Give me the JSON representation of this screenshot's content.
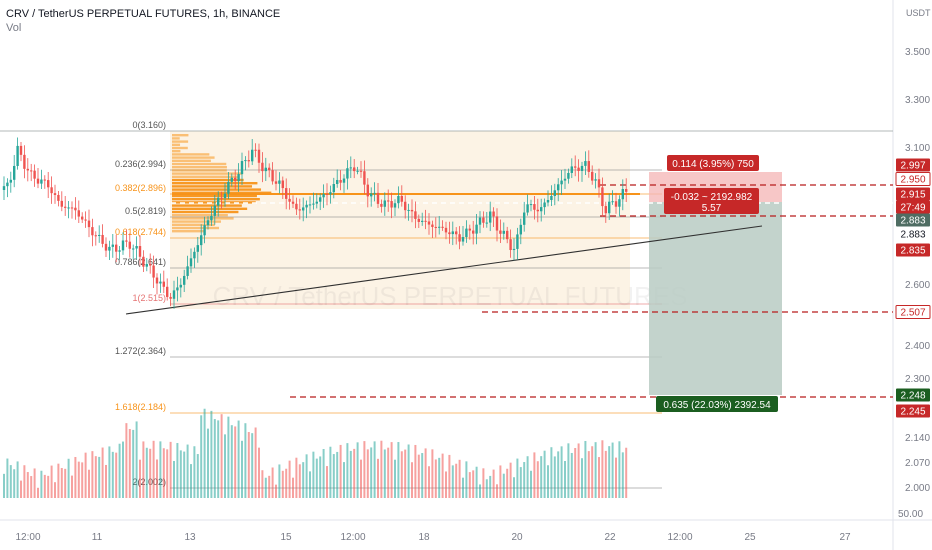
{
  "header": {
    "title": "CRV / TetherUS PERPETUAL FUTURES, 1h, BINANCE",
    "vol_label": "Vol",
    "currency": "USDT"
  },
  "watermark": "CRV / TetherUS PERPETUAL FUTURES",
  "colors": {
    "up": "#26a69a",
    "down": "#ef5350",
    "fib_orange": "#f7931a",
    "stop_zone": "#f4b4b4",
    "target_zone": "#b9cbc3",
    "dashed_red": "#b71c1c",
    "axis_text": "#787b86"
  },
  "chart_data": {
    "type": "candlestick",
    "symbol": "CRV / TetherUS PERPETUAL FUTURES",
    "interval": "1h",
    "exchange": "BINANCE",
    "price_axis": {
      "ticks": [
        "3.500",
        "3.300",
        "3.100",
        "2.600",
        "2.500",
        "2.400",
        "2.300",
        "2.140",
        "2.070",
        "2.000"
      ],
      "volume_tick": "50.00"
    },
    "time_axis": {
      "labels": [
        "12:00",
        "11",
        "13",
        "15",
        "12:00",
        "18",
        "20",
        "22",
        "12:00",
        "25",
        "27"
      ]
    },
    "price_labels": [
      {
        "value": "2.997",
        "style": "red-solid"
      },
      {
        "value": "2.950",
        "style": "red-outline"
      },
      {
        "value": "2.915",
        "style": "red-solid"
      },
      {
        "value": "27:49",
        "style": "red-solid"
      },
      {
        "value": "2.883",
        "style": "teal-solid"
      },
      {
        "value": "2.883",
        "style": "plain"
      },
      {
        "value": "2.835",
        "style": "red-solid"
      },
      {
        "value": "2.507",
        "style": "red-outline"
      },
      {
        "value": "2.248",
        "style": "green-solid"
      },
      {
        "value": "2.245",
        "style": "red-solid"
      }
    ],
    "fib_levels": [
      {
        "label": "0(3.160)",
        "color": "gray"
      },
      {
        "label": "0.236(2.994)",
        "color": "gray"
      },
      {
        "label": "0.382(2.896)",
        "color": "orange"
      },
      {
        "label": "0.5(2.819)",
        "color": "gray"
      },
      {
        "label": "0.618(2.744)",
        "color": "orange"
      },
      {
        "label": "0.786(2.641)",
        "color": "gray"
      },
      {
        "label": "1(2.515)",
        "color": "red"
      },
      {
        "label": "1.272(2.364)",
        "color": "gray"
      },
      {
        "label": "1.618(2.184)",
        "color": "orange"
      },
      {
        "label": "2(2.002)",
        "color": "gray"
      }
    ],
    "position": {
      "stop_label": "0.114 (3.95%) 750",
      "open_label_line1": "-0.032 ~ 2192.982",
      "open_label_line2": "5.57",
      "target_label": "0.635 (22.03%) 2392.54"
    }
  }
}
